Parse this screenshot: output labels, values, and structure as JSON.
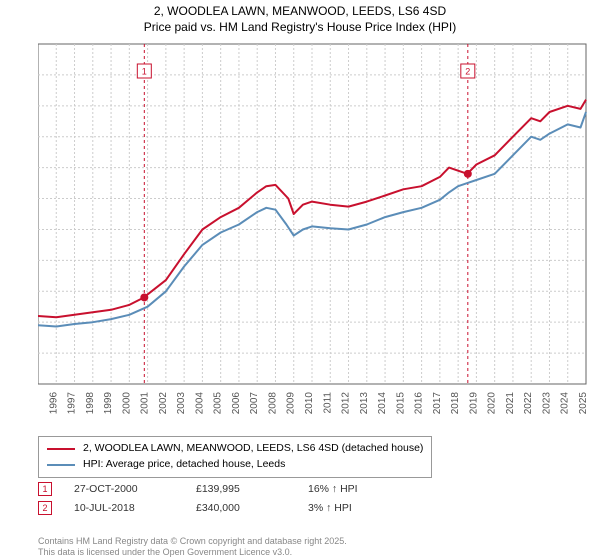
{
  "title": {
    "line1": "2, WOODLEA LAWN, MEANWOOD, LEEDS, LS6 4SD",
    "line2": "Price paid vs. HM Land Registry's House Price Index (HPI)"
  },
  "chart": {
    "type": "line",
    "background_color": "#ffffff",
    "plot_border_color": "#666666",
    "grid_color": "#cccccc",
    "vline_color": "#c8102e",
    "vline_dash": "3,3",
    "x": {
      "min": 1995,
      "max": 2025,
      "step": 1,
      "labels": [
        "1995",
        "1996",
        "1997",
        "1998",
        "1999",
        "2000",
        "2001",
        "2002",
        "2003",
        "2004",
        "2005",
        "2006",
        "2007",
        "2008",
        "2009",
        "2010",
        "2011",
        "2012",
        "2013",
        "2014",
        "2015",
        "2016",
        "2017",
        "2018",
        "2019",
        "2020",
        "2021",
        "2022",
        "2023",
        "2024",
        "2025"
      ],
      "label_fontsize": 10,
      "label_color": "#555555",
      "label_rotate": -90
    },
    "y": {
      "min": 0,
      "max": 550000,
      "step": 50000,
      "labels": [
        "£0",
        "£50K",
        "£100K",
        "£150K",
        "£200K",
        "£250K",
        "£300K",
        "£350K",
        "£400K",
        "£450K",
        "£500K",
        "£550K"
      ],
      "label_fontsize": 10,
      "label_color": "#555555"
    },
    "series": [
      {
        "name": "price_paid",
        "label": "2, WOODLEA LAWN, MEANWOOD, LEEDS, LS6 4SD (detached house)",
        "color": "#c8102e",
        "line_width": 2,
        "points": [
          [
            1995,
            110000
          ],
          [
            1996,
            108000
          ],
          [
            1997,
            112000
          ],
          [
            1998,
            116000
          ],
          [
            1999,
            120000
          ],
          [
            2000,
            128000
          ],
          [
            2000.8,
            139995
          ],
          [
            2001,
            145000
          ],
          [
            2002,
            168000
          ],
          [
            2003,
            210000
          ],
          [
            2004,
            250000
          ],
          [
            2005,
            270000
          ],
          [
            2006,
            285000
          ],
          [
            2007,
            310000
          ],
          [
            2007.5,
            320000
          ],
          [
            2008,
            322000
          ],
          [
            2008.7,
            300000
          ],
          [
            2009,
            275000
          ],
          [
            2009.5,
            290000
          ],
          [
            2010,
            295000
          ],
          [
            2011,
            290000
          ],
          [
            2012,
            287000
          ],
          [
            2013,
            295000
          ],
          [
            2014,
            305000
          ],
          [
            2015,
            315000
          ],
          [
            2016,
            320000
          ],
          [
            2017,
            335000
          ],
          [
            2017.5,
            350000
          ],
          [
            2018,
            345000
          ],
          [
            2018.5,
            340000
          ],
          [
            2019,
            355000
          ],
          [
            2020,
            370000
          ],
          [
            2021,
            400000
          ],
          [
            2022,
            430000
          ],
          [
            2022.5,
            425000
          ],
          [
            2023,
            440000
          ],
          [
            2024,
            450000
          ],
          [
            2024.7,
            445000
          ],
          [
            2025,
            460000
          ]
        ]
      },
      {
        "name": "hpi",
        "label": "HPI: Average price, detached house, Leeds",
        "color": "#5b8db8",
        "line_width": 2,
        "points": [
          [
            1995,
            95000
          ],
          [
            1996,
            93000
          ],
          [
            1997,
            97000
          ],
          [
            1998,
            100000
          ],
          [
            1999,
            105000
          ],
          [
            2000,
            112000
          ],
          [
            2001,
            125000
          ],
          [
            2002,
            150000
          ],
          [
            2003,
            190000
          ],
          [
            2004,
            225000
          ],
          [
            2005,
            245000
          ],
          [
            2006,
            258000
          ],
          [
            2007,
            278000
          ],
          [
            2007.5,
            285000
          ],
          [
            2008,
            282000
          ],
          [
            2008.6,
            258000
          ],
          [
            2009,
            240000
          ],
          [
            2009.5,
            250000
          ],
          [
            2010,
            255000
          ],
          [
            2011,
            252000
          ],
          [
            2012,
            250000
          ],
          [
            2013,
            258000
          ],
          [
            2014,
            270000
          ],
          [
            2015,
            278000
          ],
          [
            2016,
            285000
          ],
          [
            2017,
            298000
          ],
          [
            2017.5,
            310000
          ],
          [
            2018,
            320000
          ],
          [
            2018.5,
            325000
          ],
          [
            2019,
            330000
          ],
          [
            2020,
            340000
          ],
          [
            2021,
            370000
          ],
          [
            2022,
            400000
          ],
          [
            2022.5,
            395000
          ],
          [
            2023,
            405000
          ],
          [
            2024,
            420000
          ],
          [
            2024.7,
            415000
          ],
          [
            2025,
            440000
          ]
        ]
      }
    ],
    "markers": [
      {
        "num": "1",
        "x": 2000.82,
        "y": 139995,
        "dot_color": "#c8102e",
        "box_fill": "#ffffff",
        "box_border": "#c8102e"
      },
      {
        "num": "2",
        "x": 2018.53,
        "y": 340000,
        "dot_color": "#c8102e",
        "box_fill": "#ffffff",
        "box_border": "#c8102e"
      }
    ],
    "marker_box": {
      "w": 14,
      "h": 14,
      "fontsize": 9,
      "y_offset": -270
    }
  },
  "legend": {
    "rows": [
      {
        "color": "#c8102e",
        "text_bind": "chart.series.0.label"
      },
      {
        "color": "#5b8db8",
        "text_bind": "chart.series.1.label"
      }
    ]
  },
  "sales": [
    {
      "num": "1",
      "date": "27-OCT-2000",
      "price": "£139,995",
      "hpi_delta": "16% ↑ HPI"
    },
    {
      "num": "2",
      "date": "10-JUL-2018",
      "price": "£340,000",
      "hpi_delta": "3% ↑ HPI"
    }
  ],
  "footer": {
    "line1": "Contains HM Land Registry data © Crown copyright and database right 2025.",
    "line2": "This data is licensed under the Open Government Licence v3.0."
  }
}
